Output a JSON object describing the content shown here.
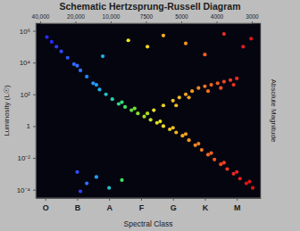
{
  "chart_data": {
    "type": "scatter",
    "title": "Schematic Hertzsprung-Russell Diagram",
    "xlabel": "Spectral Class",
    "ylabel": "Luminosity (L☉)",
    "y2label": "Absolute Magnitude",
    "x2_categories": [
      "40,000",
      "20,000",
      "10,000",
      "7500",
      "5000",
      "4000",
      "3000"
    ],
    "x": [
      0.05,
      0.2,
      0.35,
      0.5,
      0.7,
      0.9,
      1.1,
      1.3,
      1.5,
      1.7,
      1.9,
      2.1,
      2.3,
      2.5,
      2.7,
      2.9,
      3.1,
      3.3,
      3.5,
      3.7,
      3.9,
      4.1,
      4.3,
      4.5,
      4.7,
      4.9,
      5.1,
      5.3,
      5.5,
      5.7,
      5.9,
      6.1,
      6.3,
      6.5,
      1.0,
      1.6,
      2.4,
      2.8,
      3.2,
      3.6,
      4.0,
      4.4,
      4.8,
      5.2,
      5.6,
      6.0,
      6.4,
      3.4,
      3.7,
      4.0,
      4.2,
      4.4,
      4.6,
      4.8,
      5.0,
      5.2,
      5.4,
      5.6,
      5.8,
      6.0,
      4.1,
      4.5,
      5.1,
      5.5,
      5.9,
      1.8,
      2.6,
      3.2,
      3.7,
      4.4,
      5.0,
      5.6,
      6.2,
      6.45,
      1.0,
      1.3,
      1.6,
      2.0,
      2.4,
      1.1
    ],
    "values": [
      400000.0,
      200000.0,
      100000.0,
      50000.0,
      20000.0,
      7900.0,
      3200.0,
      1300.0,
      500,
      200,
      100,
      50,
      25,
      16,
      10,
      6.3,
      4,
      2.5,
      1.6,
      1,
      0.63,
      0.4,
      0.25,
      0.13,
      0.063,
      0.032,
      0.016,
      0.0079,
      0.004,
      0.002,
      0.001,
      0.0005,
      0.00025,
      0.00013,
      6300.0,
      400,
      32,
      13,
      6.3,
      2,
      0.79,
      0.32,
      0.079,
      0.02,
      0.005,
      0.0013,
      0.00032,
      10,
      20,
      40,
      63,
      100,
      160,
      250,
      320,
      400,
      500,
      630,
      790,
      1000,
      20,
      63,
      160,
      250,
      400,
      25000.0,
      250000.0,
      100000.0,
      500000.0,
      160000.0,
      32000.0,
      630000.0,
      100000.0,
      320000.0,
      0.0013,
      0.00025,
      0.00063,
      0.00013,
      0.0004,
      7.9e-05
    ],
    "colors": [
      "#2a2aff",
      "#2a2aff",
      "#3038ff",
      "#3048ff",
      "#3058ff",
      "#3068ff",
      "#3078ff",
      "#2088ff",
      "#2098ff",
      "#20b0e8",
      "#20c0c8",
      "#20d0a8",
      "#30d888",
      "#40e060",
      "#60e040",
      "#80e030",
      "#a0e020",
      "#c0e020",
      "#e0e020",
      "#f0d820",
      "#f0c820",
      "#f0b820",
      "#f0a820",
      "#f09820",
      "#f08820",
      "#f07820",
      "#f06820",
      "#f05820",
      "#f04820",
      "#f03820",
      "#e82828",
      "#e02020",
      "#d81818",
      "#d01818",
      "#3070ff",
      "#20a0ff",
      "#38dc70",
      "#70e038",
      "#b0e020",
      "#e8e020",
      "#f0c020",
      "#f0a020",
      "#f08020",
      "#f06020",
      "#f04020",
      "#e82020",
      "#d81818",
      "#e0e020",
      "#f0d020",
      "#f0c020",
      "#f0b820",
      "#f0a820",
      "#f09820",
      "#f08820",
      "#f07820",
      "#f06820",
      "#f05820",
      "#f04820",
      "#f03820",
      "#e82828",
      "#f0c020",
      "#f0a020",
      "#f07020",
      "#f05020",
      "#f03020",
      "#20b0e8",
      "#f0e820",
      "#f0d820",
      "#f0b020",
      "#f09020",
      "#f06020",
      "#e83020",
      "#e02020",
      "#d81818",
      "#3050ff",
      "#3070ff",
      "#20a0ff",
      "#20c0c8",
      "#40e060",
      "#3040ff"
    ],
    "xlim": [
      -0.3,
      6.75
    ],
    "xticks": [
      {
        "value": 0,
        "label": "O"
      },
      {
        "value": 1,
        "label": "B"
      },
      {
        "value": 2,
        "label": "A"
      },
      {
        "value": 3,
        "label": "F"
      },
      {
        "value": 4,
        "label": "G"
      },
      {
        "value": 5,
        "label": "K"
      },
      {
        "value": 6,
        "label": "M"
      }
    ],
    "ylim": [
      3e-05,
      3000000.0
    ],
    "yticks": [
      {
        "value": 1000000,
        "label": "10⁶"
      },
      {
        "value": 10000,
        "label": "10⁴"
      },
      {
        "value": 100,
        "label": "10²"
      },
      1,
      {
        "value": 0.01,
        "label": "10⁻²"
      },
      {
        "value": 0.0001,
        "label": "10⁻⁴"
      }
    ],
    "log": "y",
    "grid": false,
    "marker": "circle"
  }
}
